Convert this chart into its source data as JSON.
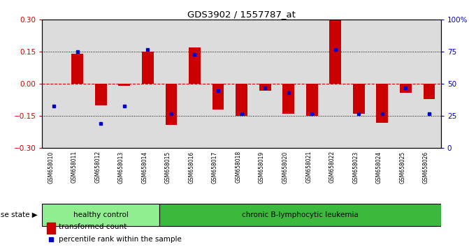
{
  "title": "GDS3902 / 1557787_at",
  "samples": [
    "GSM658010",
    "GSM658011",
    "GSM658012",
    "GSM658013",
    "GSM658014",
    "GSM658015",
    "GSM658016",
    "GSM658017",
    "GSM658018",
    "GSM658019",
    "GSM658020",
    "GSM658021",
    "GSM658022",
    "GSM658023",
    "GSM658024",
    "GSM658025",
    "GSM658026"
  ],
  "red_bars": [
    0.0,
    0.14,
    -0.1,
    -0.01,
    0.15,
    -0.19,
    0.17,
    -0.12,
    -0.15,
    -0.03,
    -0.14,
    -0.15,
    0.3,
    -0.14,
    -0.18,
    -0.04,
    -0.07
  ],
  "blue_dots": [
    33,
    75,
    19,
    33,
    77,
    27,
    73,
    45,
    27,
    47,
    43,
    27,
    77,
    27,
    27,
    47,
    27
  ],
  "ylim": [
    -0.3,
    0.3
  ],
  "right_ylim": [
    0,
    100
  ],
  "yticks_left": [
    -0.3,
    -0.15,
    0,
    0.15,
    0.3
  ],
  "yticks_right": [
    0,
    25,
    50,
    75,
    100
  ],
  "bar_color": "#CC0000",
  "dot_color": "#0000CC",
  "group1_label": "healthy control",
  "group2_label": "chronic B-lymphocytic leukemia",
  "group1_count": 5,
  "group2_count": 12,
  "group1_color": "#90EE90",
  "group2_color": "#3CB83C",
  "disease_state_label": "disease state",
  "legend_bar_label": "transformed count",
  "legend_dot_label": "percentile rank within the sample",
  "bar_width": 0.5,
  "col_bg_color": "#DCDCDC",
  "plot_bg_color": "#FFFFFF"
}
